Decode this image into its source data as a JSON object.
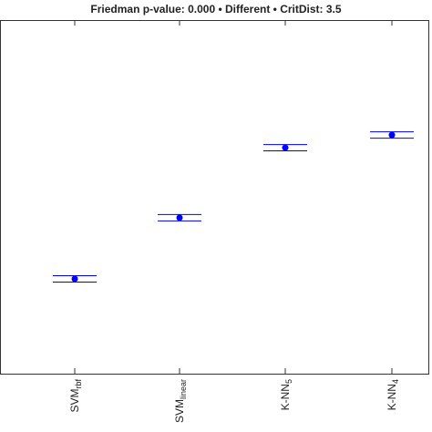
{
  "chart_data": {
    "type": "rank-errorbar",
    "title": "Friedman p-value: 0.000 • Different • CritDist: 3.5",
    "categories": [
      "SVM",
      "SVM",
      "K-NN",
      "K-NN"
    ],
    "category_subscripts": [
      "rbf",
      "linear",
      "5",
      "4"
    ],
    "values": [
      26.8,
      44.1,
      63.9,
      67.5
    ],
    "errors": [
      0.9,
      0.9,
      0.9,
      0.9
    ],
    "color": "#0000ff",
    "ylim": [
      0,
      100
    ]
  }
}
